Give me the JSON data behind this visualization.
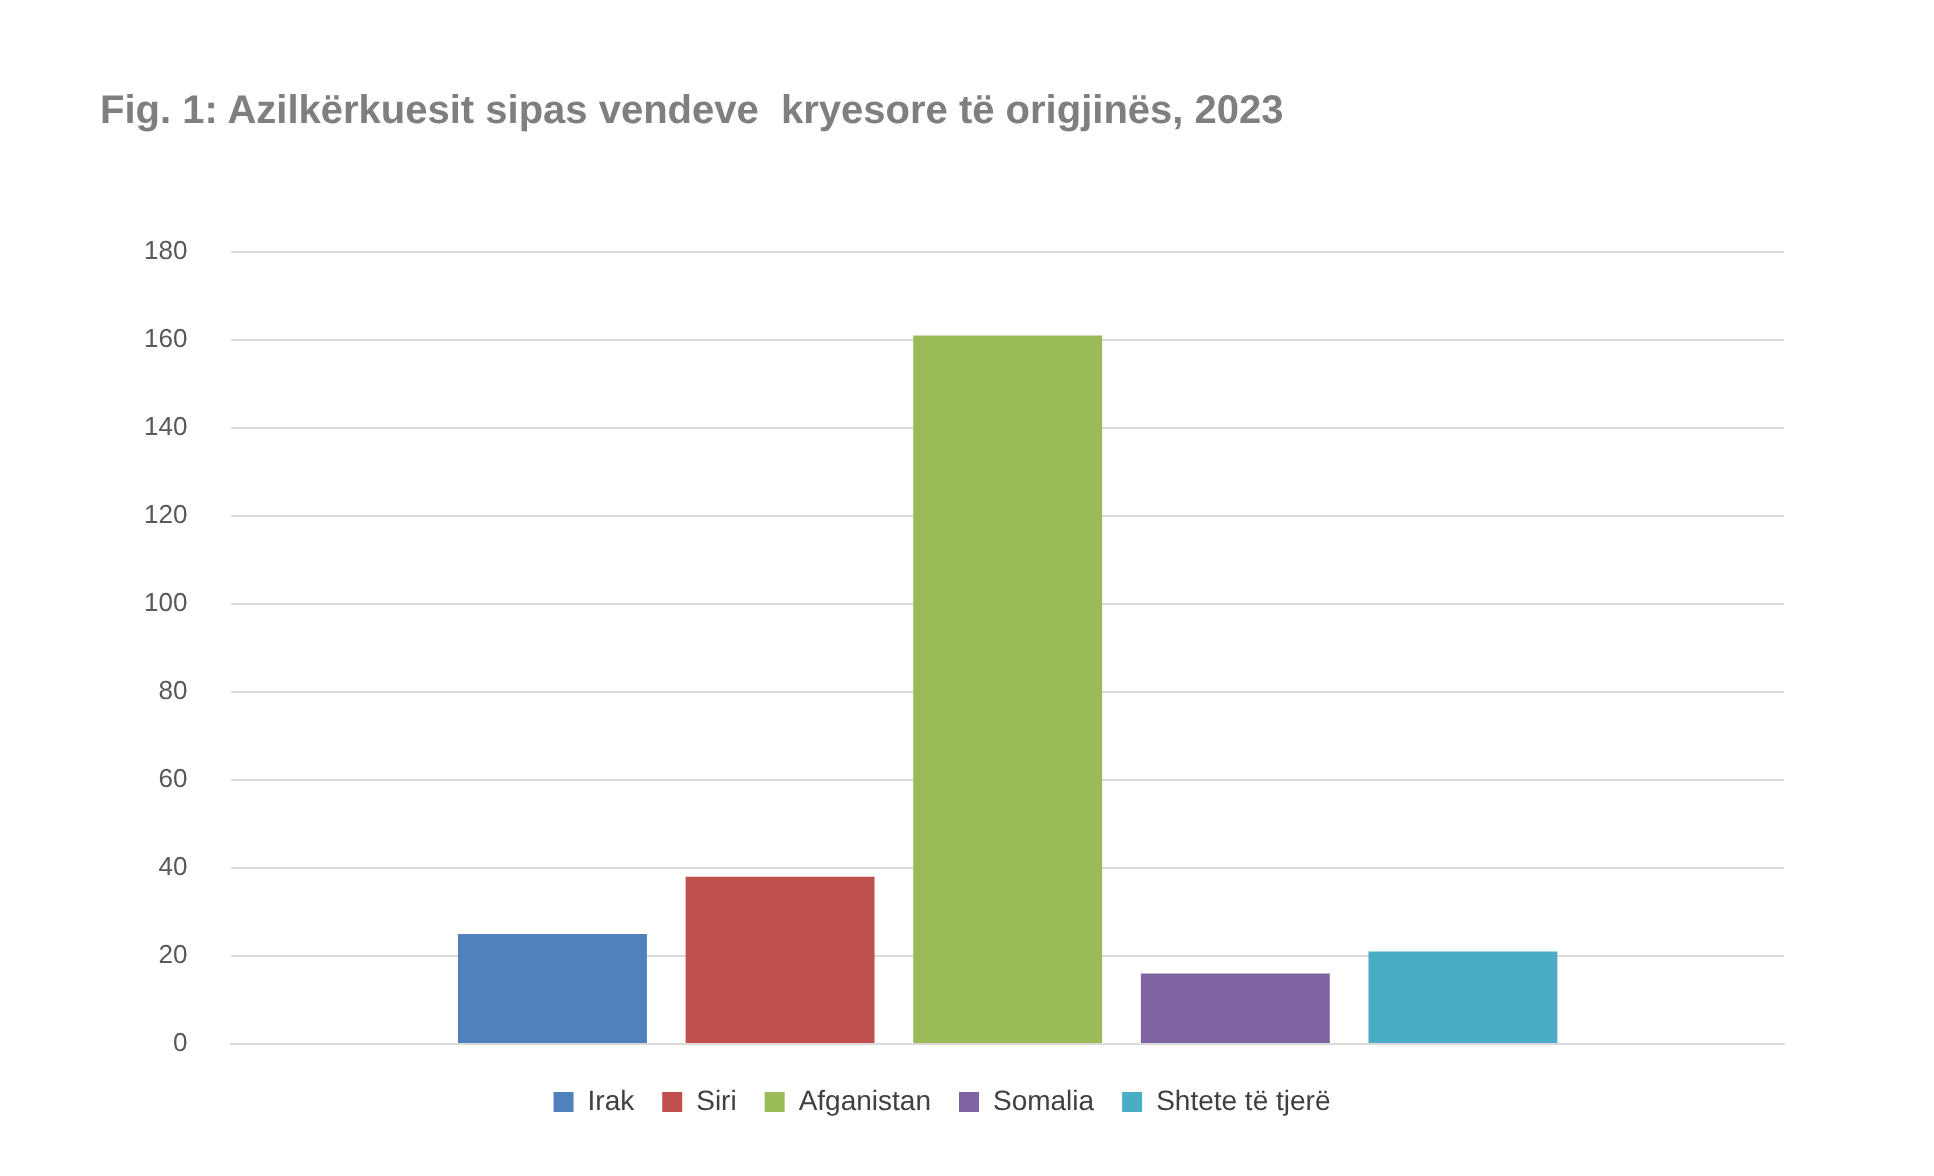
{
  "chart_data": {
    "type": "bar",
    "title": "Fig. 1: Azilkërkuesit sipas vendeve  kryesore të origjinës, 2023",
    "categories": [
      null
    ],
    "series": [
      {
        "name": "Irak",
        "color": "#4f81bd",
        "values": [
          25
        ]
      },
      {
        "name": "Siri",
        "color": "#c0504d",
        "values": [
          38
        ]
      },
      {
        "name": "Afganistan",
        "color": "#9bbb59",
        "values": [
          161
        ]
      },
      {
        "name": "Somalia",
        "color": "#8064a2",
        "values": [
          16
        ]
      },
      {
        "name": "Shtete të tjerë",
        "color": "#4bacc6",
        "values": [
          21
        ]
      }
    ],
    "ylim": [
      0,
      180
    ],
    "yticks": [
      0,
      20,
      40,
      60,
      80,
      100,
      120,
      140,
      160,
      180
    ],
    "grid": "y",
    "legend": "bottom"
  }
}
